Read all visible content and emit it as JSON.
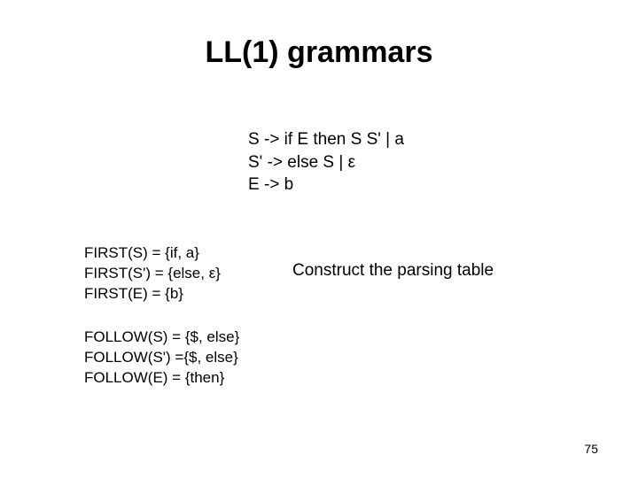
{
  "title": "LL(1) grammars",
  "grammar": {
    "line1": "S -> if E then S S' | a",
    "line2": "S' -> else S | ε",
    "line3": "E -> b"
  },
  "first": {
    "line1": "FIRST(S) = {if, a}",
    "line2": "FIRST(S') = {else, ε}",
    "line3": "FIRST(E) = {b}"
  },
  "construct": "Construct the parsing table",
  "follow": {
    "line1": "FOLLOW(S) = {$, else}",
    "line2": "FOLLOW(S') ={$, else}",
    "line3": "FOLLOW(E) = {then}"
  },
  "pageNumber": "75"
}
